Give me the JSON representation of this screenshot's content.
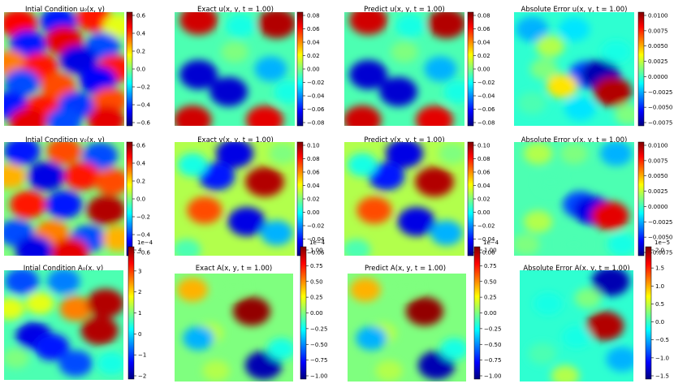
{
  "figure": {
    "panels": [
      {
        "title": "Intial Condition u₀(x, y)",
        "colorbar": {
          "ticks": [
            "0.6",
            "0.4",
            "0.2",
            "0.0",
            "−0.2",
            "−0.4",
            "−0.6"
          ],
          "multiplier": ""
        }
      },
      {
        "title": "Exact u(x, y, t = 1.00)",
        "colorbar": {
          "ticks": [
            "0.08",
            "0.06",
            "0.04",
            "0.02",
            "0.00",
            "−0.02",
            "−0.04",
            "−0.06",
            "−0.08"
          ],
          "multiplier": ""
        }
      },
      {
        "title": "Predict u(x, y, t = 1.00)",
        "colorbar": {
          "ticks": [
            "0.08",
            "0.06",
            "0.04",
            "0.02",
            "0.00",
            "−0.02",
            "−0.04",
            "−0.06",
            "−0.08"
          ],
          "multiplier": ""
        }
      },
      {
        "title": "Absolute Error u(x, y, t = 1.00)",
        "colorbar": {
          "ticks": [
            "0.0100",
            "0.0075",
            "0.0050",
            "0.0025",
            "0.0000",
            "−0.0025",
            "−0.0050",
            "−0.0075"
          ],
          "multiplier": ""
        }
      },
      {
        "title": "Intial Condition v₀(x, y)",
        "colorbar": {
          "ticks": [
            "0.6",
            "0.4",
            "0.2",
            "0.0",
            "−0.2",
            "−0.4",
            "−0.6"
          ],
          "multiplier": ""
        }
      },
      {
        "title": "Exact v(x, y, t = 1.00)",
        "colorbar": {
          "ticks": [
            "0.10",
            "0.08",
            "0.06",
            "0.04",
            "0.02",
            "0.00",
            "−0.02",
            "−0.04",
            "−0.06"
          ],
          "multiplier": ""
        }
      },
      {
        "title": "Predict v(x, y, t = 1.00)",
        "colorbar": {
          "ticks": [
            "0.10",
            "0.08",
            "0.06",
            "0.04",
            "0.02",
            "0.00",
            "−0.02",
            "−0.04",
            "−0.06"
          ],
          "multiplier": ""
        }
      },
      {
        "title": "Absolute Error v(x, y, t = 1.00)",
        "colorbar": {
          "ticks": [
            "0.0100",
            "0.0075",
            "0.0050",
            "0.0025",
            "0.0000",
            "−0.0025",
            "−0.0050",
            "−0.0075"
          ],
          "multiplier": ""
        }
      },
      {
        "title": "Intial Condition A₀(x, y)",
        "colorbar": {
          "ticks": [
            "4",
            "3",
            "2",
            "1",
            "0",
            "−1",
            "−2"
          ],
          "multiplier": "1e−4"
        }
      },
      {
        "title": "Exact A(x, y, t = 1.00)",
        "colorbar": {
          "ticks": [
            "1.00",
            "0.75",
            "0.50",
            "0.25",
            "0.00",
            "−0.25",
            "−0.50",
            "−0.75",
            "−1.00"
          ],
          "multiplier": "1e−4"
        }
      },
      {
        "title": "Predict A(x, y, t = 1.00)",
        "colorbar": {
          "ticks": [
            "1.00",
            "0.75",
            "0.50",
            "0.25",
            "0.00",
            "−0.25",
            "−0.50",
            "−0.75",
            "−1.00"
          ],
          "multiplier": "1e−4"
        }
      },
      {
        "title": "Absolute Error A(x, y, t = 1.00)",
        "colorbar": {
          "ticks": [
            "2.0",
            "1.5",
            "1.0",
            "0.5",
            "0.0",
            "−0.5",
            "−1.0",
            "−1.5"
          ],
          "multiplier": "1e−5"
        }
      }
    ]
  },
  "chart_data": [
    {
      "type": "heatmap",
      "title": "Intial Condition u₀(x, y)",
      "colormap": "jet",
      "colorbar_range": [
        -0.68,
        0.65
      ],
      "colorbar_ticks": [
        0.6,
        0.4,
        0.2,
        0.0,
        -0.2,
        -0.4,
        -0.6
      ],
      "grid": false
    },
    {
      "type": "heatmap",
      "title": "Exact u(x, y, t = 1.00)",
      "colormap": "jet",
      "colorbar_range": [
        -0.09,
        0.09
      ],
      "colorbar_ticks": [
        0.08,
        0.06,
        0.04,
        0.02,
        0.0,
        -0.02,
        -0.04,
        -0.06,
        -0.08
      ],
      "grid": false
    },
    {
      "type": "heatmap",
      "title": "Predict u(x, y, t = 1.00)",
      "colormap": "jet",
      "colorbar_range": [
        -0.09,
        0.09
      ],
      "colorbar_ticks": [
        0.08,
        0.06,
        0.04,
        0.02,
        0.0,
        -0.02,
        -0.04,
        -0.06,
        -0.08
      ],
      "grid": false
    },
    {
      "type": "heatmap",
      "title": "Absolute Error u(x, y, t = 1.00)",
      "colormap": "jet",
      "colorbar_range": [
        -0.008,
        0.0115
      ],
      "colorbar_ticks": [
        0.01,
        0.0075,
        0.005,
        0.0025,
        0.0,
        -0.0025,
        -0.005,
        -0.0075
      ],
      "grid": false
    },
    {
      "type": "heatmap",
      "title": "Intial Condition v₀(x, y)",
      "colormap": "jet",
      "colorbar_range": [
        -0.66,
        0.66
      ],
      "colorbar_ticks": [
        0.6,
        0.4,
        0.2,
        0.0,
        -0.2,
        -0.4,
        -0.6
      ],
      "grid": false
    },
    {
      "type": "heatmap",
      "title": "Exact v(x, y, t = 1.00)",
      "colormap": "jet",
      "colorbar_range": [
        -0.068,
        0.105
      ],
      "colorbar_ticks": [
        0.1,
        0.08,
        0.06,
        0.04,
        0.02,
        0.0,
        -0.02,
        -0.04,
        -0.06
      ],
      "grid": false
    },
    {
      "type": "heatmap",
      "title": "Predict v(x, y, t = 1.00)",
      "colormap": "jet",
      "colorbar_range": [
        -0.068,
        0.105
      ],
      "colorbar_ticks": [
        0.1,
        0.08,
        0.06,
        0.04,
        0.02,
        0.0,
        -0.02,
        -0.04,
        -0.06
      ],
      "grid": false
    },
    {
      "type": "heatmap",
      "title": "Absolute Error v(x, y, t = 1.00)",
      "colormap": "jet",
      "colorbar_range": [
        -0.0085,
        0.012
      ],
      "colorbar_ticks": [
        0.01,
        0.0075,
        0.005,
        0.0025,
        0.0,
        -0.0025,
        -0.005,
        -0.0075
      ],
      "grid": false
    },
    {
      "type": "heatmap",
      "title": "Intial Condition A₀(x, y)",
      "colormap": "jet",
      "colorbar_range": [
        -2.7,
        4.2
      ],
      "colorbar_ticks": [
        4,
        3,
        2,
        1,
        0,
        -1,
        -2
      ],
      "multiplier": "1e-4",
      "grid": false
    },
    {
      "type": "heatmap",
      "title": "Exact A(x, y, t = 1.00)",
      "colormap": "jet",
      "colorbar_range": [
        -1.05,
        1.1
      ],
      "colorbar_ticks": [
        1.0,
        0.75,
        0.5,
        0.25,
        0.0,
        -0.25,
        -0.5,
        -0.75,
        -1.0
      ],
      "multiplier": "1e-4",
      "grid": false
    },
    {
      "type": "heatmap",
      "title": "Predict A(x, y, t = 1.00)",
      "colormap": "jet",
      "colorbar_range": [
        -1.05,
        1.1
      ],
      "colorbar_ticks": [
        1.0,
        0.75,
        0.5,
        0.25,
        0.0,
        -0.25,
        -0.5,
        -0.75,
        -1.0
      ],
      "multiplier": "1e-4",
      "grid": false
    },
    {
      "type": "heatmap",
      "title": "Absolute Error A(x, y, t = 1.00)",
      "colormap": "jet",
      "colorbar_range": [
        -1.6,
        2.1
      ],
      "colorbar_ticks": [
        2.0,
        1.5,
        1.0,
        0.5,
        0.0,
        -0.5,
        -1.0,
        -1.5
      ],
      "multiplier": "1e-5",
      "grid": false
    }
  ],
  "colormap_stops": [
    "#00007f",
    "#0000ff",
    "#007fff",
    "#00ffff",
    "#7fff7f",
    "#ffff00",
    "#ff7f00",
    "#ff0000",
    "#7f0000"
  ]
}
